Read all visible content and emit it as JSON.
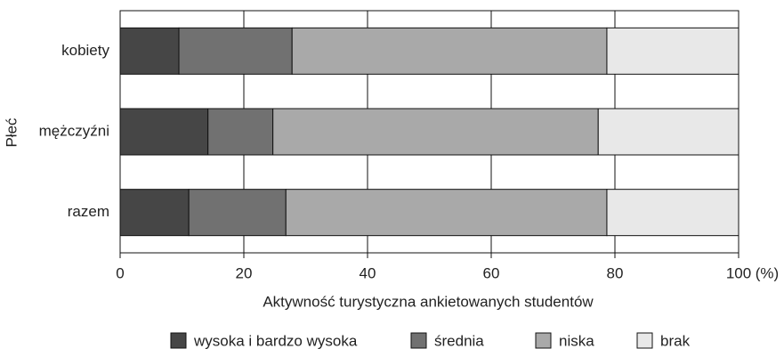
{
  "chart_data": {
    "type": "stacked_barh",
    "categories": [
      "kobiety",
      "mężczyźni",
      "razem"
    ],
    "series": [
      {
        "name": "wysoka i bardzo wysoka",
        "color": "#464646",
        "values": [
          9.5,
          14.2,
          11.1
        ]
      },
      {
        "name": "średnia",
        "color": "#717171",
        "values": [
          18.3,
          10.5,
          15.7
        ]
      },
      {
        "name": "niska",
        "color": "#a9a9a9",
        "values": [
          50.9,
          52.6,
          51.9
        ]
      },
      {
        "name": "brak",
        "color": "#e8e8e8",
        "values": [
          21.3,
          22.7,
          21.3
        ]
      }
    ],
    "xlim": [
      0,
      100
    ],
    "xticks": [
      0,
      20,
      40,
      60,
      80,
      100
    ],
    "x_unit": "(%)",
    "xlabel": "Aktywność turystyczna ankietowanych studentów",
    "ylabel": "Płeć",
    "grid": true,
    "legend": "bottom"
  }
}
